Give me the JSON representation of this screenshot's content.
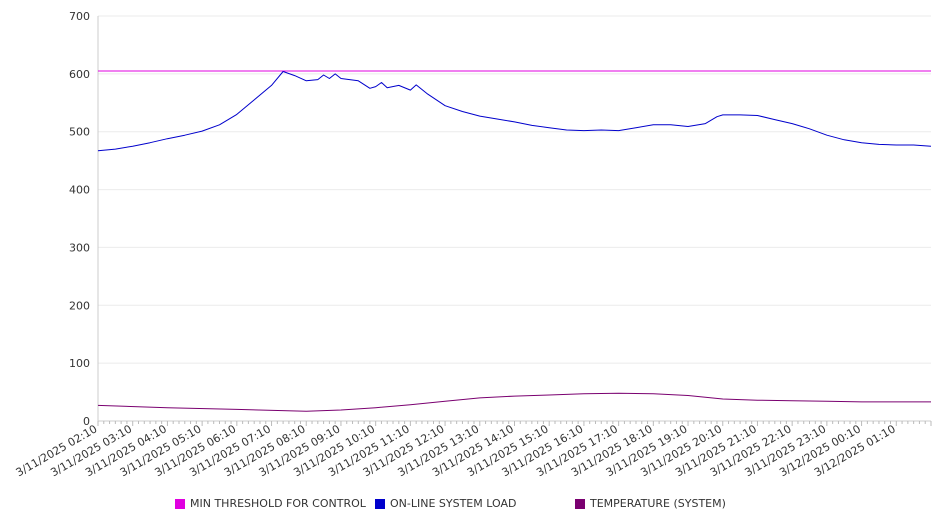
{
  "chart_data": {
    "type": "line",
    "title": "",
    "xlabel": "",
    "ylabel": "",
    "ylim": [
      0,
      700
    ],
    "yticks": [
      0,
      100,
      200,
      300,
      400,
      500,
      600,
      700
    ],
    "grid": true,
    "legend_position": "bottom",
    "x_start": "3/11/2025 02:10",
    "x_end": "3/12/2025 02:10",
    "x_tick_labels": [
      "3/11/2025 02:10",
      "3/11/2025 03:10",
      "3/11/2025 04:10",
      "3/11/2025 05:10",
      "3/11/2025 06:10",
      "3/11/2025 07:10",
      "3/11/2025 08:10",
      "3/11/2025 09:10",
      "3/11/2025 10:10",
      "3/11/2025 11:10",
      "3/11/2025 12:10",
      "3/11/2025 13:10",
      "3/11/2025 14:10",
      "3/11/2025 15:10",
      "3/11/2025 16:10",
      "3/11/2025 17:10",
      "3/11/2025 18:10",
      "3/11/2025 19:10",
      "3/11/2025 20:10",
      "3/11/2025 21:10",
      "3/11/2025 22:10",
      "3/11/2025 23:10",
      "3/12/2025 00:10",
      "3/12/2025 01:10"
    ],
    "series": [
      {
        "name": "MIN THRESHOLD FOR CONTROL",
        "color": "#e000e0",
        "points": [
          [
            "3/11/2025 02:10",
            605
          ],
          [
            "3/12/2025 02:10",
            605
          ]
        ]
      },
      {
        "name": "ON-LINE SYSTEM LOAD",
        "color": "#0000cc",
        "points": [
          [
            "3/11/2025 02:10",
            467
          ],
          [
            "3/11/2025 02:40",
            470
          ],
          [
            "3/11/2025 03:10",
            475
          ],
          [
            "3/11/2025 03:40",
            481
          ],
          [
            "3/11/2025 04:10",
            488
          ],
          [
            "3/11/2025 04:40",
            494
          ],
          [
            "3/11/2025 05:10",
            501
          ],
          [
            "3/11/2025 05:40",
            512
          ],
          [
            "3/11/2025 06:10",
            530
          ],
          [
            "3/11/2025 06:40",
            555
          ],
          [
            "3/11/2025 07:10",
            580
          ],
          [
            "3/11/2025 07:30",
            604
          ],
          [
            "3/11/2025 07:50",
            597
          ],
          [
            "3/11/2025 08:10",
            588
          ],
          [
            "3/11/2025 08:30",
            590
          ],
          [
            "3/11/2025 08:40",
            598
          ],
          [
            "3/11/2025 08:50",
            592
          ],
          [
            "3/11/2025 09:00",
            600
          ],
          [
            "3/11/2025 09:10",
            592
          ],
          [
            "3/11/2025 09:40",
            588
          ],
          [
            "3/11/2025 10:00",
            575
          ],
          [
            "3/11/2025 10:10",
            578
          ],
          [
            "3/11/2025 10:20",
            585
          ],
          [
            "3/11/2025 10:30",
            576
          ],
          [
            "3/11/2025 10:50",
            580
          ],
          [
            "3/11/2025 11:10",
            572
          ],
          [
            "3/11/2025 11:20",
            581
          ],
          [
            "3/11/2025 11:40",
            565
          ],
          [
            "3/11/2025 12:10",
            545
          ],
          [
            "3/11/2025 12:40",
            535
          ],
          [
            "3/11/2025 13:10",
            527
          ],
          [
            "3/11/2025 13:40",
            522
          ],
          [
            "3/11/2025 14:10",
            517
          ],
          [
            "3/11/2025 14:40",
            511
          ],
          [
            "3/11/2025 15:10",
            507
          ],
          [
            "3/11/2025 15:40",
            503
          ],
          [
            "3/11/2025 16:10",
            502
          ],
          [
            "3/11/2025 16:40",
            503
          ],
          [
            "3/11/2025 17:10",
            502
          ],
          [
            "3/11/2025 17:40",
            507
          ],
          [
            "3/11/2025 18:10",
            512
          ],
          [
            "3/11/2025 18:40",
            512
          ],
          [
            "3/11/2025 19:10",
            509
          ],
          [
            "3/11/2025 19:40",
            514
          ],
          [
            "3/11/2025 20:00",
            526
          ],
          [
            "3/11/2025 20:10",
            529
          ],
          [
            "3/11/2025 20:40",
            529
          ],
          [
            "3/11/2025 21:10",
            528
          ],
          [
            "3/11/2025 21:40",
            521
          ],
          [
            "3/11/2025 22:10",
            514
          ],
          [
            "3/11/2025 22:40",
            505
          ],
          [
            "3/11/2025 23:10",
            494
          ],
          [
            "3/11/2025 23:40",
            486
          ],
          [
            "3/12/2025 00:10",
            481
          ],
          [
            "3/12/2025 00:40",
            478
          ],
          [
            "3/12/2025 01:10",
            477
          ],
          [
            "3/12/2025 01:40",
            477
          ],
          [
            "3/12/2025 02:10",
            475
          ]
        ]
      },
      {
        "name": "TEMPERATURE (SYSTEM)",
        "color": "#7a0070",
        "points": [
          [
            "3/11/2025 02:10",
            27
          ],
          [
            "3/11/2025 04:10",
            23
          ],
          [
            "3/11/2025 06:10",
            20
          ],
          [
            "3/11/2025 08:10",
            17
          ],
          [
            "3/11/2025 09:10",
            19
          ],
          [
            "3/11/2025 10:10",
            23
          ],
          [
            "3/11/2025 11:10",
            28
          ],
          [
            "3/11/2025 12:10",
            34
          ],
          [
            "3/11/2025 13:10",
            40
          ],
          [
            "3/11/2025 14:10",
            43
          ],
          [
            "3/11/2025 15:10",
            45
          ],
          [
            "3/11/2025 16:10",
            47
          ],
          [
            "3/11/2025 17:10",
            48
          ],
          [
            "3/11/2025 18:10",
            47
          ],
          [
            "3/11/2025 19:10",
            44
          ],
          [
            "3/11/2025 20:10",
            38
          ],
          [
            "3/11/2025 21:10",
            36
          ],
          [
            "3/11/2025 22:10",
            35
          ],
          [
            "3/11/2025 23:10",
            34
          ],
          [
            "3/12/2025 00:10",
            33
          ],
          [
            "3/12/2025 02:10",
            33
          ]
        ]
      }
    ]
  }
}
